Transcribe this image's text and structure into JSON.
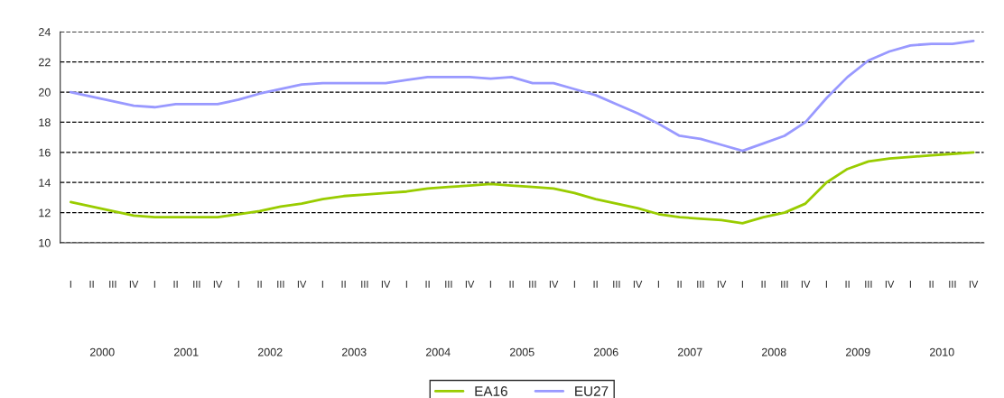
{
  "chart_data": {
    "type": "line",
    "categories": [
      "I",
      "II",
      "III",
      "IV",
      "I",
      "II",
      "III",
      "IV",
      "I",
      "II",
      "III",
      "IV",
      "I",
      "II",
      "III",
      "IV",
      "I",
      "II",
      "III",
      "IV",
      "I",
      "II",
      "III",
      "IV",
      "I",
      "II",
      "III",
      "IV",
      "I",
      "II",
      "III",
      "IV",
      "I",
      "II",
      "III",
      "IV",
      "I",
      "II",
      "III",
      "IV",
      "I",
      "II",
      "III",
      "IV"
    ],
    "annotations": [
      "2000",
      "2001",
      "2002",
      "2003",
      "2004",
      "2005",
      "2006",
      "2007",
      "2008",
      "2009",
      "2010"
    ],
    "series": [
      {
        "name": "EA16",
        "color": "#99cc00",
        "values": [
          12.7,
          12.4,
          12.1,
          11.8,
          11.7,
          11.7,
          11.7,
          11.7,
          11.9,
          12.1,
          12.4,
          12.6,
          12.9,
          13.1,
          13.2,
          13.3,
          13.4,
          13.6,
          13.7,
          13.8,
          13.9,
          13.8,
          13.7,
          13.6,
          13.3,
          12.9,
          12.6,
          12.3,
          11.9,
          11.7,
          11.6,
          11.5,
          11.3,
          11.7,
          12.0,
          12.6,
          14.0,
          14.9,
          15.4,
          15.6,
          15.7,
          15.8,
          15.9,
          16.0
        ]
      },
      {
        "name": "EU27",
        "color": "#9999ff",
        "values": [
          20.0,
          19.7,
          19.4,
          19.1,
          19.0,
          19.2,
          19.2,
          19.2,
          19.5,
          19.9,
          20.2,
          20.5,
          20.6,
          20.6,
          20.6,
          20.6,
          20.8,
          21.0,
          21.0,
          21.0,
          20.9,
          21.0,
          20.6,
          20.6,
          20.2,
          19.8,
          19.2,
          18.6,
          17.9,
          17.1,
          16.9,
          16.5,
          16.1,
          16.6,
          17.1,
          18.0,
          19.6,
          21.0,
          22.1,
          22.7,
          23.1,
          23.2,
          23.2,
          23.4
        ]
      }
    ],
    "ylim": [
      10,
      24
    ],
    "yticks": [
      10,
      12,
      14,
      16,
      18,
      20,
      22,
      24
    ],
    "grid": "y",
    "legend": "bottom",
    "marker": "none",
    "line_style": "solid"
  }
}
